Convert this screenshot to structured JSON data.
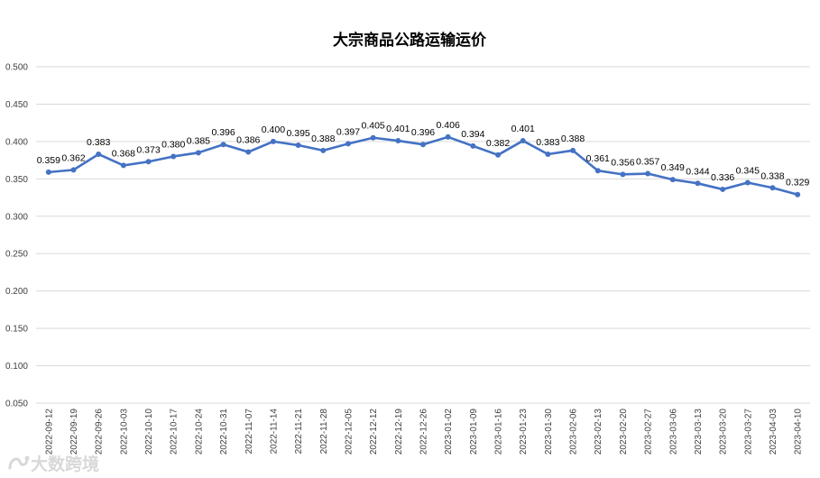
{
  "chart_data": {
    "type": "line",
    "title": "大宗商品公路运输运价",
    "xlabel": "",
    "ylabel": "",
    "ylim": [
      0.05,
      0.5
    ],
    "yticks": [
      "0.050",
      "0.100",
      "0.150",
      "0.200",
      "0.250",
      "0.300",
      "0.350",
      "0.400",
      "0.450",
      "0.500"
    ],
    "grid": true,
    "legend": "none",
    "colors": {
      "line": "#4472c4",
      "grid": "#d9d9d9"
    },
    "categories": [
      "2022-09-12",
      "2022-09-19",
      "2022-09-26",
      "2022-10-03",
      "2022-10-10",
      "2022-10-17",
      "2022-10-24",
      "2022-10-31",
      "2022-11-07",
      "2022-11-14",
      "2022-11-21",
      "2022-11-28",
      "2022-12-05",
      "2022-12-12",
      "2022-12-19",
      "2022-12-26",
      "2023-01-02",
      "2023-01-09",
      "2023-01-16",
      "2023-01-23",
      "2023-01-30",
      "2023-02-06",
      "2023-02-13",
      "2023-02-20",
      "2023-02-27",
      "2023-03-06",
      "2023-03-13",
      "2023-03-20",
      "2023-03-27",
      "2023-04-03",
      "2023-04-10"
    ],
    "series": [
      {
        "values": [
          0.359,
          0.362,
          0.383,
          0.368,
          0.373,
          0.38,
          0.385,
          0.396,
          0.386,
          0.4,
          0.395,
          0.388,
          0.397,
          0.405,
          0.401,
          0.396,
          0.406,
          0.394,
          0.382,
          0.401,
          0.383,
          0.388,
          0.361,
          0.356,
          0.357,
          0.349,
          0.344,
          0.336,
          0.345,
          0.338,
          0.329
        ]
      }
    ]
  },
  "watermark": {
    "text": "大数跨境",
    "icon": "logo-icon"
  }
}
